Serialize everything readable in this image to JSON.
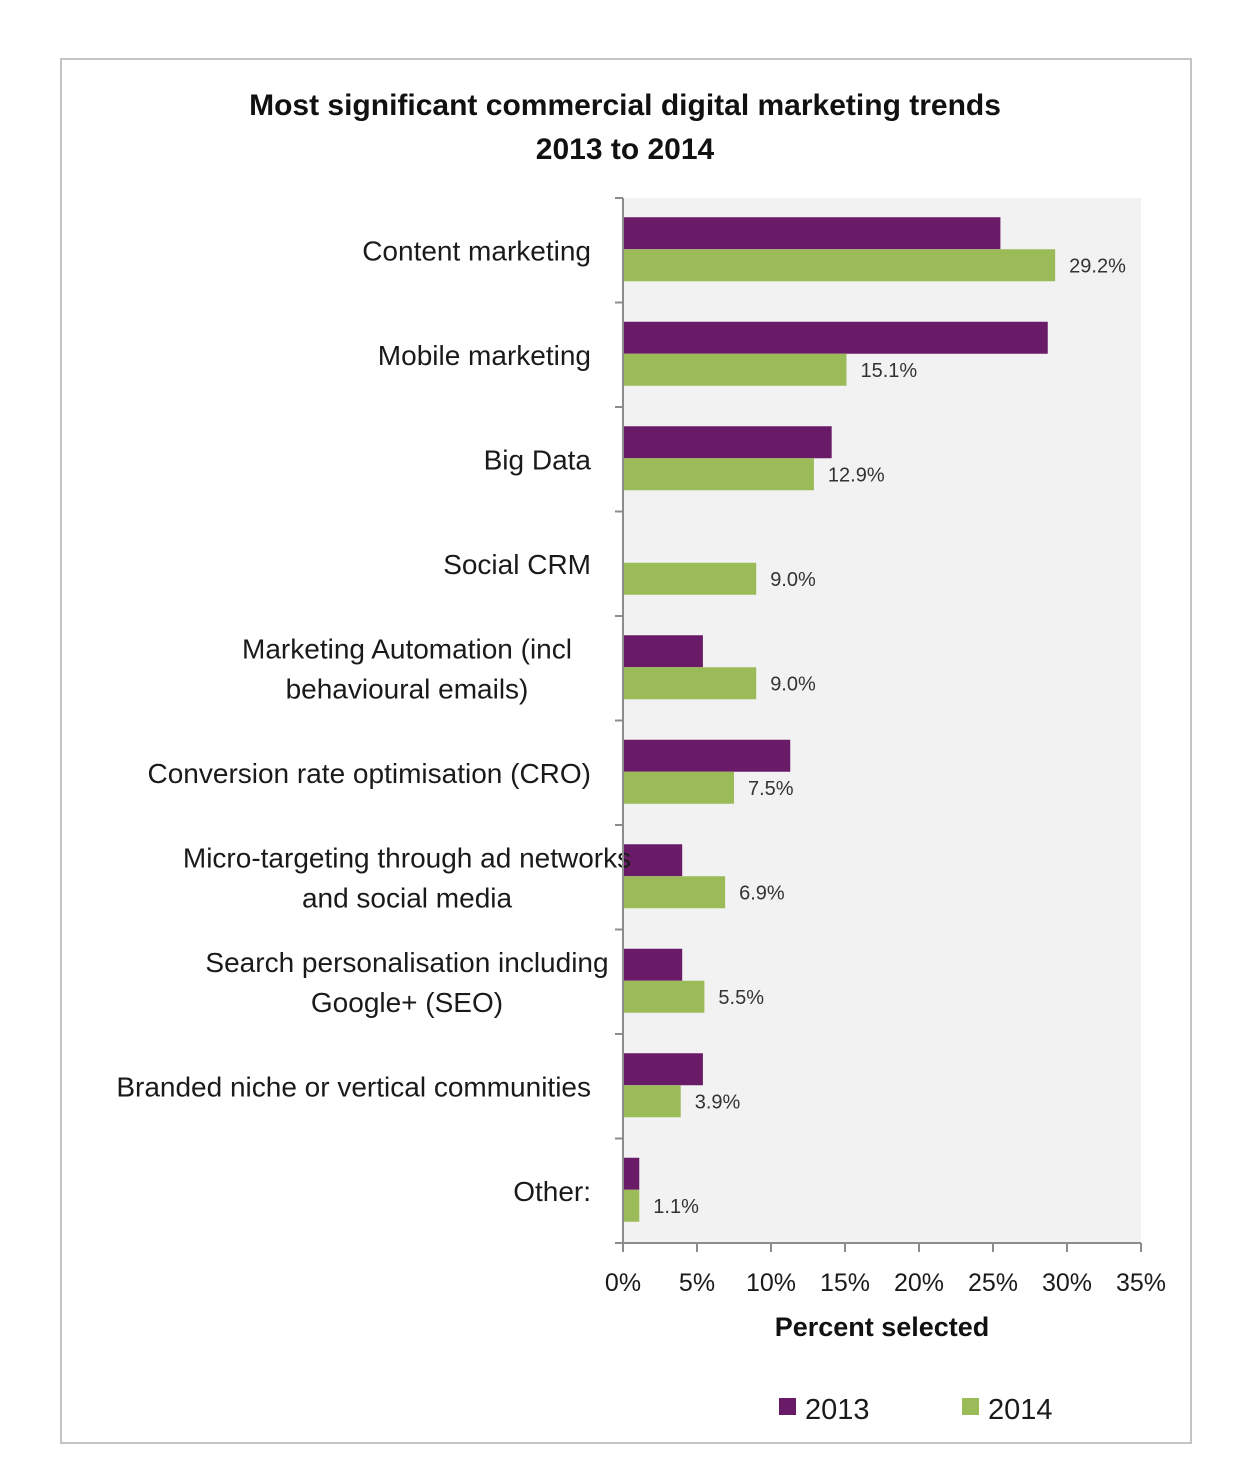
{
  "chart_data": {
    "type": "bar",
    "orientation": "horizontal",
    "title": "Most significant commercial digital marketing trends",
    "subtitle": "2013 to 2014",
    "xlabel": "Percent selected",
    "ylabel": "",
    "xlim": [
      0,
      35
    ],
    "x_ticks": [
      "0%",
      "5%",
      "10%",
      "15%",
      "20%",
      "25%",
      "30%",
      "35%"
    ],
    "x_tick_values": [
      0,
      5,
      10,
      15,
      20,
      25,
      30,
      35
    ],
    "grid": false,
    "legend_position": "bottom",
    "categories": [
      [
        "Content marketing"
      ],
      [
        "Mobile marketing"
      ],
      [
        "Big Data"
      ],
      [
        "Social CRM"
      ],
      [
        "Marketing Automation (incl",
        "behavioural emails)"
      ],
      [
        "Conversion rate optimisation (CRO)"
      ],
      [
        "Micro-targeting through ad networks",
        "and social media"
      ],
      [
        "Search personalisation including",
        "Google+ (SEO)"
      ],
      [
        "Branded niche or vertical communities"
      ],
      [
        "Other:"
      ]
    ],
    "series": [
      {
        "name": "2013",
        "color": "#6a1b67",
        "values": [
          25.5,
          28.7,
          14.1,
          0,
          5.4,
          11.3,
          4.0,
          4.0,
          5.4,
          1.1
        ],
        "labels": null
      },
      {
        "name": "2014",
        "color": "#9bbb59",
        "values": [
          29.2,
          15.1,
          12.9,
          9.0,
          9.0,
          7.5,
          6.9,
          5.5,
          3.9,
          1.1
        ],
        "labels": [
          "29.2%",
          "15.1%",
          "12.9%",
          "9.0%",
          "9.0%",
          "7.5%",
          "6.9%",
          "5.5%",
          "3.9%",
          "1.1%"
        ]
      }
    ]
  },
  "colors": {
    "plot_background": "#f2f2f2",
    "axis": "#8c8c8c",
    "frame": "#c4c4c4"
  }
}
